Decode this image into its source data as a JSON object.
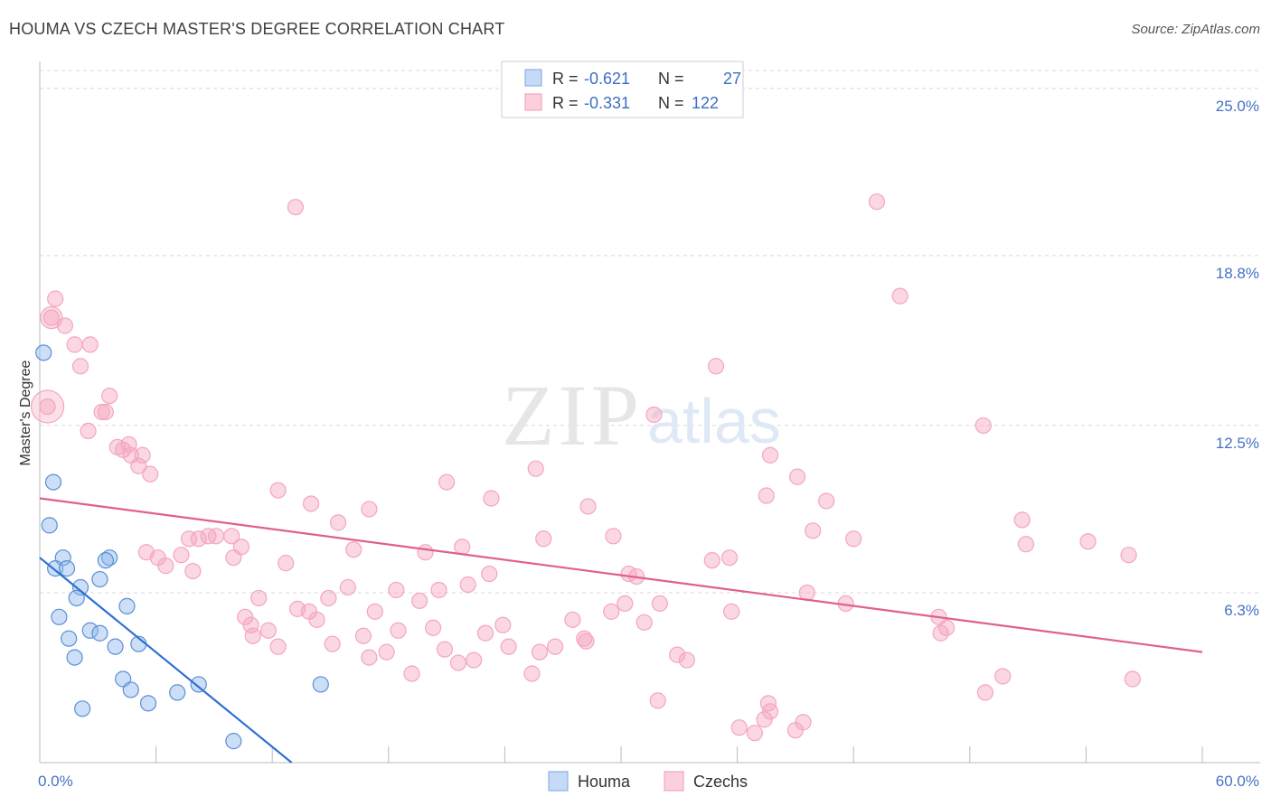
{
  "title": "HOUMA VS CZECH MASTER'S DEGREE CORRELATION CHART",
  "source": "Source: ZipAtlas.com",
  "colors": {
    "houma": "#8fb8ec",
    "houma_line": "#2f6fd4",
    "czechs": "#f4a6be",
    "czechs_line": "#e0608a",
    "tick_text": "#4472c4",
    "grid": "#d8d8d8"
  },
  "legend": {
    "rows": [
      {
        "r_label": "R =",
        "r_value": "-0.621",
        "n_label": "N =",
        "n_value": "27"
      },
      {
        "r_label": "R =",
        "r_value": "-0.331",
        "n_label": "N =",
        "n_value": "122"
      }
    ]
  },
  "bottom_legend": [
    "Houma",
    "Czechs"
  ],
  "watermark": {
    "zip": "ZIP",
    "atlas": "atlas"
  },
  "chart_data": {
    "type": "scatter",
    "title": "HOUMA VS CZECH MASTER'S DEGREE CORRELATION CHART",
    "xlabel": "",
    "ylabel": "Master's Degree",
    "xlim": [
      0,
      60
    ],
    "ylim": [
      0,
      26
    ],
    "x_tick_labels": [
      "0.0%",
      "60.0%"
    ],
    "y_ticks": [
      6.3,
      12.5,
      18.8,
      25.0
    ],
    "y_tick_labels": [
      "6.3%",
      "12.5%",
      "18.8%",
      "25.0%"
    ],
    "grid": true,
    "legend_position": "top-center",
    "series": [
      {
        "name": "Houma",
        "R": -0.621,
        "N": 27,
        "trend": {
          "x0": 0,
          "y0": 7.6,
          "x1": 13.0,
          "y1": 0.0
        },
        "points": [
          [
            0.2,
            15.2
          ],
          [
            0.7,
            10.4
          ],
          [
            0.5,
            8.8
          ],
          [
            1.2,
            7.6
          ],
          [
            0.8,
            7.2
          ],
          [
            1.4,
            7.2
          ],
          [
            3.6,
            7.6
          ],
          [
            3.4,
            7.5
          ],
          [
            3.1,
            6.8
          ],
          [
            2.1,
            6.5
          ],
          [
            1.9,
            6.1
          ],
          [
            4.5,
            5.8
          ],
          [
            1.0,
            5.4
          ],
          [
            1.5,
            4.6
          ],
          [
            2.6,
            4.9
          ],
          [
            3.1,
            4.8
          ],
          [
            3.9,
            4.3
          ],
          [
            5.1,
            4.4
          ],
          [
            1.8,
            3.9
          ],
          [
            4.3,
            3.1
          ],
          [
            4.7,
            2.7
          ],
          [
            5.6,
            2.2
          ],
          [
            7.1,
            2.6
          ],
          [
            8.2,
            2.9
          ],
          [
            14.5,
            2.9
          ],
          [
            2.2,
            2.0
          ],
          [
            10.0,
            0.8
          ]
        ]
      },
      {
        "name": "Czechs",
        "R": -0.331,
        "N": 122,
        "trend": {
          "x0": 0,
          "y0": 9.8,
          "x1": 60,
          "y1": 4.1
        },
        "points": [
          [
            0.4,
            13.2
          ],
          [
            0.6,
            16.5
          ],
          [
            0.8,
            17.2
          ],
          [
            1.3,
            16.2
          ],
          [
            1.8,
            15.5
          ],
          [
            2.1,
            14.7
          ],
          [
            2.6,
            15.5
          ],
          [
            3.6,
            13.6
          ],
          [
            3.2,
            13.0
          ],
          [
            3.4,
            13.0
          ],
          [
            2.5,
            12.3
          ],
          [
            4.0,
            11.7
          ],
          [
            4.3,
            11.6
          ],
          [
            4.6,
            11.8
          ],
          [
            4.7,
            11.4
          ],
          [
            5.3,
            11.4
          ],
          [
            5.1,
            11.0
          ],
          [
            5.7,
            10.7
          ],
          [
            13.2,
            20.6
          ],
          [
            12.3,
            10.1
          ],
          [
            14.0,
            9.6
          ],
          [
            15.4,
            8.9
          ],
          [
            17.0,
            9.4
          ],
          [
            16.2,
            7.9
          ],
          [
            19.9,
            7.8
          ],
          [
            21.0,
            10.4
          ],
          [
            21.8,
            8.0
          ],
          [
            23.2,
            7.0
          ],
          [
            23.3,
            9.8
          ],
          [
            25.6,
            10.9
          ],
          [
            26.0,
            8.3
          ],
          [
            28.3,
            9.5
          ],
          [
            29.6,
            8.4
          ],
          [
            30.4,
            7.0
          ],
          [
            30.8,
            6.9
          ],
          [
            31.7,
            12.9
          ],
          [
            34.7,
            7.5
          ],
          [
            35.6,
            7.6
          ],
          [
            34.9,
            14.7
          ],
          [
            37.7,
            11.4
          ],
          [
            37.5,
            9.9
          ],
          [
            39.1,
            10.6
          ],
          [
            39.9,
            8.6
          ],
          [
            40.6,
            9.7
          ],
          [
            42.0,
            8.3
          ],
          [
            39.6,
            6.3
          ],
          [
            41.6,
            5.9
          ],
          [
            44.4,
            17.3
          ],
          [
            43.2,
            20.8
          ],
          [
            46.4,
            5.4
          ],
          [
            46.8,
            5.0
          ],
          [
            46.5,
            4.8
          ],
          [
            48.7,
            12.5
          ],
          [
            48.8,
            2.6
          ],
          [
            49.7,
            3.2
          ],
          [
            50.7,
            9.0
          ],
          [
            50.9,
            8.1
          ],
          [
            56.2,
            7.7
          ],
          [
            54.1,
            8.2
          ],
          [
            56.4,
            3.1
          ],
          [
            5.5,
            7.8
          ],
          [
            6.1,
            7.6
          ],
          [
            6.5,
            7.3
          ],
          [
            7.3,
            7.7
          ],
          [
            7.7,
            8.3
          ],
          [
            7.9,
            7.1
          ],
          [
            8.2,
            8.3
          ],
          [
            8.7,
            8.4
          ],
          [
            9.1,
            8.4
          ],
          [
            9.9,
            8.4
          ],
          [
            10.0,
            7.6
          ],
          [
            10.4,
            8.0
          ],
          [
            10.6,
            5.4
          ],
          [
            10.9,
            5.1
          ],
          [
            11.0,
            4.7
          ],
          [
            11.3,
            6.1
          ],
          [
            11.8,
            4.9
          ],
          [
            12.3,
            4.3
          ],
          [
            12.7,
            7.4
          ],
          [
            13.3,
            5.7
          ],
          [
            13.9,
            5.6
          ],
          [
            14.3,
            5.3
          ],
          [
            14.9,
            6.1
          ],
          [
            15.1,
            4.4
          ],
          [
            15.9,
            6.5
          ],
          [
            16.7,
            4.7
          ],
          [
            17.0,
            3.9
          ],
          [
            17.3,
            5.6
          ],
          [
            17.9,
            4.1
          ],
          [
            18.4,
            6.4
          ],
          [
            18.5,
            4.9
          ],
          [
            19.2,
            3.3
          ],
          [
            19.6,
            6.0
          ],
          [
            20.3,
            5.0
          ],
          [
            20.6,
            6.4
          ],
          [
            20.9,
            4.2
          ],
          [
            21.6,
            3.7
          ],
          [
            22.1,
            6.6
          ],
          [
            22.4,
            3.8
          ],
          [
            23.0,
            4.8
          ],
          [
            23.9,
            5.1
          ],
          [
            24.2,
            4.3
          ],
          [
            25.4,
            3.3
          ],
          [
            25.8,
            4.1
          ],
          [
            26.6,
            4.3
          ],
          [
            27.5,
            5.3
          ],
          [
            28.1,
            4.6
          ],
          [
            28.2,
            4.5
          ],
          [
            29.5,
            5.6
          ],
          [
            30.2,
            5.9
          ],
          [
            31.2,
            5.2
          ],
          [
            32.0,
            5.9
          ],
          [
            32.9,
            4.0
          ],
          [
            33.4,
            3.8
          ],
          [
            35.7,
            5.6
          ],
          [
            36.1,
            1.3
          ],
          [
            36.9,
            1.1
          ],
          [
            37.4,
            1.6
          ],
          [
            37.6,
            2.2
          ],
          [
            37.7,
            1.9
          ],
          [
            39.4,
            1.5
          ],
          [
            39.0,
            1.2
          ],
          [
            31.9,
            2.3
          ]
        ]
      }
    ]
  }
}
